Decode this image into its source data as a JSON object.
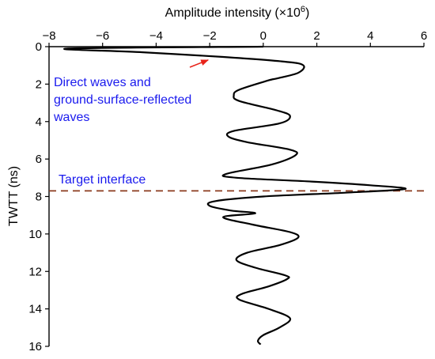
{
  "chart_data": {
    "type": "line",
    "orientation": "vertical-profile",
    "xlabel": "Amplitude intensity (×10",
    "xlabel_exp": "6",
    "xlabel_close": ")",
    "ylabel": "TWTT (ns)",
    "x_axis_position": "top",
    "y_inverted": true,
    "xlim": [
      -8,
      6
    ],
    "ylim": [
      0,
      16
    ],
    "x_ticks": [
      -8,
      -6,
      -4,
      -2,
      0,
      2,
      4,
      6
    ],
    "x_tick_labels": [
      "−8",
      "−6",
      "−4",
      "−2",
      "0",
      "2",
      "4",
      "6"
    ],
    "y_ticks": [
      0,
      2,
      4,
      6,
      8,
      10,
      12,
      14,
      16
    ],
    "y_tick_labels": [
      "0",
      "2",
      "4",
      "6",
      "8",
      "10",
      "12",
      "14",
      "16"
    ],
    "grid": false,
    "series": [
      {
        "color": "#000000",
        "points": [
          [
            0,
            0
          ],
          [
            -7.3,
            0.1
          ],
          [
            -4.5,
            0.3
          ],
          [
            -1.5,
            0.55
          ],
          [
            0.8,
            0.8
          ],
          [
            1.5,
            1.0
          ],
          [
            1.3,
            1.4
          ],
          [
            0.5,
            1.7
          ],
          [
            0.2,
            1.8
          ],
          [
            -0.9,
            2.3
          ],
          [
            -1.1,
            2.6
          ],
          [
            -0.9,
            2.9
          ],
          [
            0.5,
            3.4
          ],
          [
            1.0,
            3.7
          ],
          [
            0.6,
            4.1
          ],
          [
            -1.1,
            4.5
          ],
          [
            -1.3,
            4.8
          ],
          [
            -0.6,
            5.1
          ],
          [
            1.0,
            5.5
          ],
          [
            1.2,
            5.8
          ],
          [
            0.3,
            6.3
          ],
          [
            -1.4,
            6.8
          ],
          [
            -1.0,
            7.0
          ],
          [
            1.8,
            7.2
          ],
          [
            4.0,
            7.4
          ],
          [
            5.3,
            7.6
          ],
          [
            3.0,
            7.8
          ],
          [
            0.0,
            8.0
          ],
          [
            -1.8,
            8.25
          ],
          [
            -2.0,
            8.5
          ],
          [
            -1.2,
            8.75
          ],
          [
            -0.3,
            8.9
          ],
          [
            -1.5,
            9.1
          ],
          [
            -0.4,
            9.5
          ],
          [
            1.0,
            9.9
          ],
          [
            1.3,
            10.2
          ],
          [
            0.6,
            10.6
          ],
          [
            -0.6,
            11.0
          ],
          [
            -1.0,
            11.4
          ],
          [
            -0.3,
            11.8
          ],
          [
            0.8,
            12.2
          ],
          [
            0.9,
            12.4
          ],
          [
            0.2,
            12.8
          ],
          [
            -0.8,
            13.2
          ],
          [
            -0.9,
            13.5
          ],
          [
            0.2,
            14.0
          ],
          [
            1.0,
            14.5
          ],
          [
            0.6,
            15.0
          ],
          [
            0.0,
            15.4
          ],
          [
            -0.2,
            15.7
          ],
          [
            -0.1,
            15.9
          ]
        ]
      }
    ],
    "reference_lines": [
      {
        "orientation": "horizontal",
        "y": 7.7,
        "style": "dashed",
        "color": "#8b3a1e"
      }
    ],
    "annotations": [
      {
        "lines": [
          "Direct waves and",
          "ground-surface-reflected",
          "waves"
        ],
        "color": "#1a1aee",
        "arrow_target": [
          -2.0,
          0.5
        ],
        "arrow_color": "#e8231a"
      },
      {
        "lines": [
          "Target interface"
        ],
        "color": "#1a1aee"
      }
    ]
  }
}
